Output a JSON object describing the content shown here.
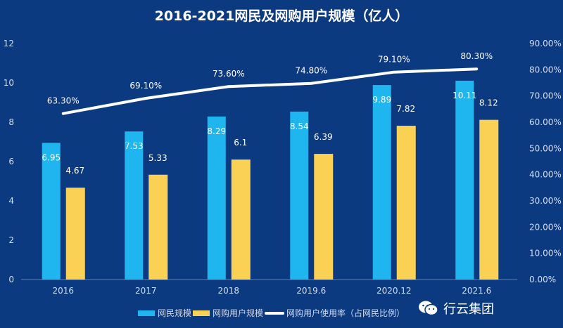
{
  "chart_data": {
    "type": "bar",
    "title": "2016-2021网民及网购用户规模（亿人）",
    "categories": [
      "2016",
      "2017",
      "2018",
      "2019.6",
      "2020.12",
      "2021.6"
    ],
    "series": [
      {
        "name": "网民规模",
        "type": "bar",
        "axis": "left",
        "color": "#1fb5ee",
        "values": [
          6.95,
          7.53,
          8.29,
          8.54,
          9.89,
          10.11
        ],
        "labels": [
          "6.95",
          "7.53",
          "8.29",
          "8.54",
          "9.89",
          "10.11"
        ]
      },
      {
        "name": "网购用户规模",
        "type": "bar",
        "axis": "left",
        "color": "#fbd155",
        "values": [
          4.67,
          5.33,
          6.1,
          6.39,
          7.82,
          8.12
        ],
        "labels": [
          "4.67",
          "5.33",
          "6.1",
          "6.39",
          "7.82",
          "8.12"
        ]
      },
      {
        "name": "网购用户使用率（占网民比例）",
        "type": "line",
        "axis": "right",
        "color": "#ffffff",
        "values": [
          63.3,
          69.1,
          73.6,
          74.8,
          79.1,
          80.3
        ],
        "labels": [
          "63.30%",
          "69.10%",
          "73.60%",
          "74.80%",
          "79.10%",
          "80.30%"
        ]
      }
    ],
    "ylim": [
      0,
      12
    ],
    "yticks": [
      "0",
      "2",
      "4",
      "6",
      "8",
      "10",
      "12"
    ],
    "y2lim": [
      0,
      90
    ],
    "y2ticks": [
      "0.00%",
      "10.00%",
      "20.00%",
      "30.00%",
      "40.00%",
      "50.00%",
      "60.00%",
      "70.00%",
      "80.00%",
      "90.00%"
    ],
    "grid": false,
    "legend": "bottom"
  },
  "watermark": {
    "text": "行云集团",
    "icon": "wechat-icon"
  }
}
